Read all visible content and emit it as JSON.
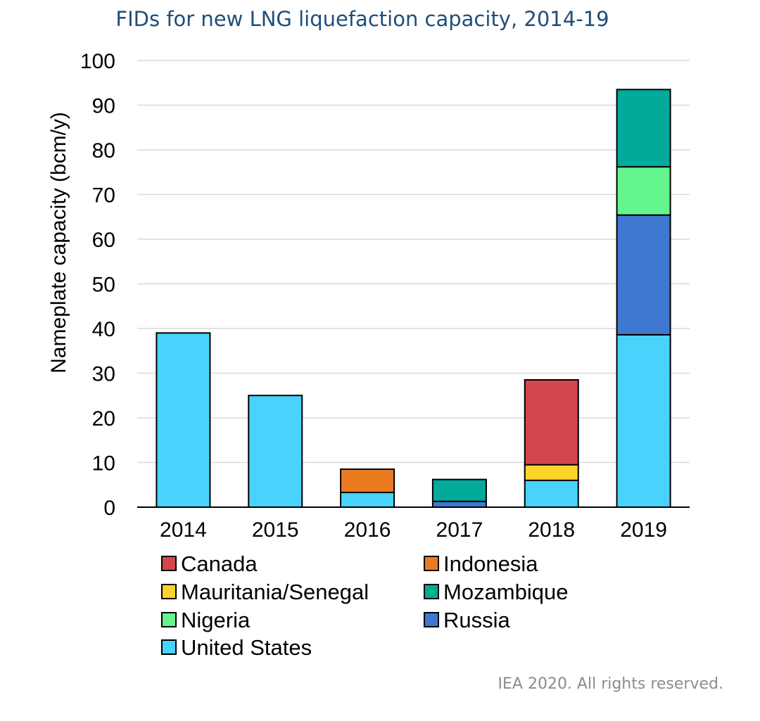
{
  "chart_data": {
    "type": "bar",
    "stacked": true,
    "title": "FIDs for new LNG liquefaction capacity, 2014-19",
    "xlabel": "",
    "ylabel": "Nameplate capacity (bcm/y)",
    "ylim": [
      0,
      100
    ],
    "yticks": [
      0,
      10,
      20,
      30,
      40,
      50,
      60,
      70,
      80,
      90,
      100
    ],
    "grid": true,
    "legend_position": "bottom",
    "categories": [
      "2014",
      "2015",
      "2016",
      "2017",
      "2018",
      "2019"
    ],
    "series": [
      {
        "name": "United States",
        "color": "#49d3fc",
        "values": [
          39,
          25,
          3.3,
          0,
          6,
          38.6
        ]
      },
      {
        "name": "Russia",
        "color": "#3f78d1",
        "values": [
          0,
          0,
          0,
          1.3,
          0,
          26.8
        ]
      },
      {
        "name": "Nigeria",
        "color": "#64f58f",
        "values": [
          0,
          0,
          0,
          0,
          0,
          10.8
        ]
      },
      {
        "name": "Mozambique",
        "color": "#02aa9c",
        "values": [
          0,
          0,
          0,
          4.9,
          0,
          17.3
        ]
      },
      {
        "name": "Mauritania/Senegal",
        "color": "#fdd42b",
        "values": [
          0,
          0,
          0,
          0,
          3.5,
          0
        ]
      },
      {
        "name": "Indonesia",
        "color": "#ea7c1f",
        "values": [
          0,
          0,
          5.2,
          0,
          0,
          0
        ]
      },
      {
        "name": "Canada",
        "color": "#d1474b",
        "values": [
          0,
          0,
          0,
          0,
          19,
          0
        ]
      }
    ],
    "legend_order": [
      "Canada",
      "Indonesia",
      "Mauritania/Senegal",
      "Mozambique",
      "Nigeria",
      "Russia",
      "United States"
    ]
  },
  "credit": "IEA 2020. All rights reserved."
}
